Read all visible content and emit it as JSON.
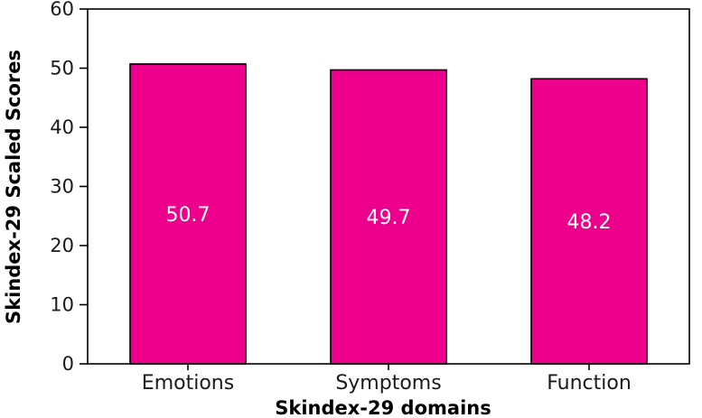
{
  "chart_data": {
    "type": "bar",
    "title": "",
    "xlabel": "Skindex-29 domains",
    "ylabel": "Skindex-29 Scaled Scores",
    "categories": [
      "Emotions",
      "Symptoms",
      "Function"
    ],
    "values": [
      50.7,
      49.7,
      48.2
    ],
    "data_labels": [
      "50.7",
      "49.7",
      "48.2"
    ],
    "ylim": [
      0,
      60
    ],
    "yticks": [
      0,
      10,
      20,
      30,
      40,
      50,
      60
    ],
    "ytick_labels": [
      "0",
      "10",
      "20",
      "30",
      "40",
      "50",
      "60"
    ],
    "grid": false,
    "bar_color": "#EC008C",
    "bar_edge_color": "#000000",
    "data_label_color": "#FFFFFF"
  }
}
